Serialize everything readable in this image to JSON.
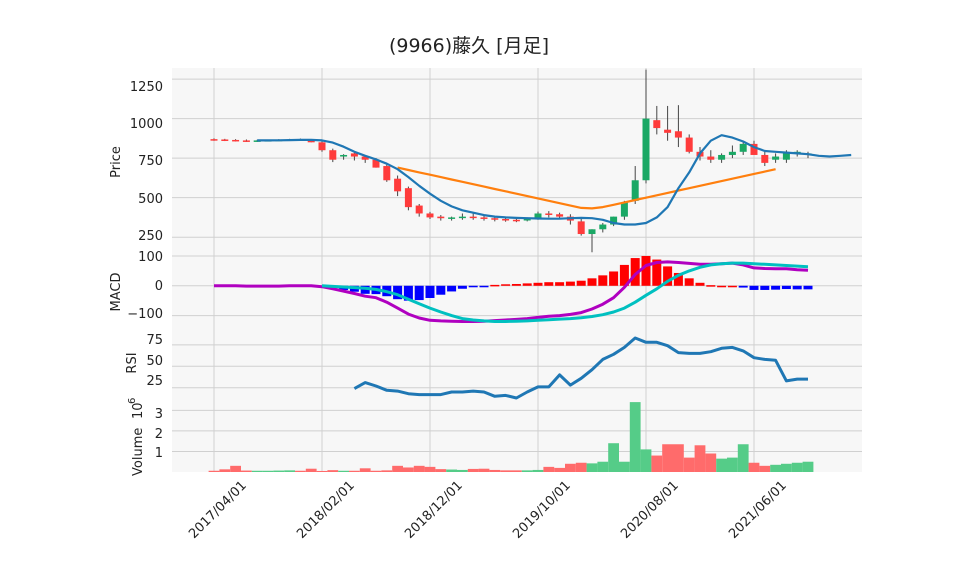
{
  "title": "(9966)藤久 [月足]",
  "colors": {
    "up": "#1aa865",
    "down": "#ff3b3b",
    "sma_short": "#1f77b4",
    "sma_long": "#ff7f0e",
    "macd_line": "#b000c0",
    "signal_line": "#00c0c0",
    "hist_pos": "#ff0000",
    "hist_neg": "#0000ff",
    "rsi": "#1f77b4",
    "vol_up": "#55cc88",
    "vol_down": "#ff6b6b",
    "grid": "#d0d0d0",
    "panel_bg": "#f7f7f7"
  },
  "chart_data": [
    {
      "type": "candlestick",
      "panel": "price",
      "ylabel": "Price",
      "ylim": [
        150,
        1320
      ],
      "yticks": [
        250,
        500,
        750,
        1000,
        1250
      ],
      "xlim": [
        "2017-04",
        "2021-11"
      ],
      "xticks": [
        "2017/04/01",
        "2018/02/01",
        "2018/12/01",
        "2019/10/01",
        "2020/08/01",
        "2021/06/01"
      ],
      "x": [
        "2017-04",
        "2017-05",
        "2017-06",
        "2017-07",
        "2017-08",
        "2017-09",
        "2017-10",
        "2017-11",
        "2017-12",
        "2018-01",
        "2018-02",
        "2018-03",
        "2018-04",
        "2018-05",
        "2018-06",
        "2018-07",
        "2018-08",
        "2018-09",
        "2018-10",
        "2018-11",
        "2018-12",
        "2019-01",
        "2019-02",
        "2019-03",
        "2019-04",
        "2019-05",
        "2019-06",
        "2019-07",
        "2019-08",
        "2019-09",
        "2019-10",
        "2019-11",
        "2019-12",
        "2020-01",
        "2020-02",
        "2020-03",
        "2020-04",
        "2020-05",
        "2020-06",
        "2020-07",
        "2020-08",
        "2020-09",
        "2020-10",
        "2020-11",
        "2020-12",
        "2021-01",
        "2021-02",
        "2021-03",
        "2021-04",
        "2021-05",
        "2021-06",
        "2021-07",
        "2021-08",
        "2021-09",
        "2021-10",
        "2021-11"
      ],
      "open": [
        870,
        868,
        865,
        862,
        860,
        862,
        864,
        866,
        868,
        866,
        850,
        800,
        760,
        780,
        760,
        740,
        700,
        620,
        560,
        450,
        400,
        380,
        370,
        375,
        380,
        375,
        370,
        365,
        360,
        360,
        370,
        400,
        395,
        380,
        350,
        270,
        300,
        330,
        380,
        480,
        610,
        990,
        930,
        920,
        880,
        790,
        760,
        740,
        770,
        790,
        840,
        770,
        740,
        740,
        780,
        775
      ],
      "high": [
        875,
        872,
        870,
        868,
        866,
        868,
        870,
        872,
        874,
        870,
        855,
        810,
        775,
        790,
        770,
        750,
        710,
        640,
        570,
        460,
        410,
        390,
        380,
        400,
        400,
        385,
        378,
        372,
        368,
        375,
        412,
        415,
        405,
        395,
        365,
        300,
        340,
        380,
        480,
        700,
        1310,
        1080,
        1080,
        1085,
        900,
        820,
        800,
        780,
        830,
        860,
        860,
        790,
        780,
        800,
        800,
        790
      ],
      "low": [
        860,
        858,
        855,
        852,
        852,
        855,
        858,
        860,
        860,
        850,
        790,
        725,
        740,
        735,
        720,
        690,
        600,
        510,
        420,
        380,
        365,
        355,
        355,
        360,
        360,
        355,
        350,
        348,
        345,
        350,
        360,
        375,
        365,
        330,
        260,
        155,
        280,
        320,
        360,
        460,
        590,
        900,
        860,
        820,
        780,
        735,
        720,
        720,
        750,
        770,
        780,
        700,
        720,
        720,
        760,
        750
      ],
      "close": [
        868,
        865,
        862,
        860,
        862,
        864,
        866,
        868,
        866,
        850,
        800,
        740,
        770,
        760,
        740,
        690,
        610,
        540,
        440,
        400,
        375,
        370,
        375,
        380,
        372,
        370,
        365,
        360,
        358,
        365,
        400,
        395,
        380,
        355,
        270,
        300,
        330,
        380,
        470,
        610,
        1000,
        940,
        910,
        880,
        790,
        760,
        740,
        770,
        790,
        840,
        770,
        720,
        760,
        780,
        790,
        780
      ]
    },
    {
      "type": "line",
      "panel": "price",
      "name": "sma_short",
      "x_start": "2017-08",
      "values": [
        862,
        862,
        863,
        864,
        865,
        865,
        862,
        848,
        822,
        790,
        765,
        742,
        715,
        680,
        630,
        575,
        525,
        480,
        445,
        420,
        405,
        390,
        380,
        375,
        372,
        370,
        368,
        367,
        367,
        370,
        372,
        370,
        360,
        340,
        330,
        330,
        340,
        375,
        440,
        560,
        660,
        780,
        860,
        895,
        880,
        855,
        820,
        795,
        790,
        785,
        780,
        775,
        765,
        760,
        765,
        770
      ]
    },
    {
      "type": "line",
      "panel": "price",
      "name": "sma_long",
      "x_start": "2018-09",
      "values": [
        690,
        675,
        660,
        645,
        630,
        615,
        600,
        585,
        570,
        555,
        540,
        525,
        510,
        495,
        480,
        465,
        450,
        435,
        432,
        440,
        455,
        470,
        485,
        500,
        515,
        530,
        545,
        560,
        575,
        590,
        605,
        620,
        635,
        650,
        665,
        680
      ]
    },
    {
      "type": "bar+line",
      "panel": "macd",
      "ylabel": "MACD",
      "ylim": [
        -135,
        110
      ],
      "yticks": [
        100,
        0,
        -100
      ],
      "x_start": "2017-04",
      "macd": [
        0,
        0,
        0,
        -1,
        -1,
        -1,
        -1,
        0,
        0,
        0,
        -3,
        -10,
        -18,
        -26,
        -35,
        -40,
        -55,
        -75,
        -95,
        -108,
        -116,
        -118,
        -119,
        -120,
        -120,
        -119,
        -117,
        -115,
        -113,
        -110,
        -106,
        -102,
        -100,
        -96,
        -90,
        -78,
        -62,
        -40,
        -5,
        38,
        68,
        78,
        80,
        78,
        75,
        72,
        72,
        74,
        76,
        70,
        60,
        58,
        57,
        57,
        54,
        52
      ],
      "signal": [
        null,
        null,
        null,
        null,
        null,
        null,
        null,
        null,
        null,
        null,
        0,
        -2,
        -4,
        -6,
        -8,
        -12,
        -20,
        -30,
        -45,
        -60,
        -75,
        -88,
        -100,
        -110,
        -115,
        -118,
        -120,
        -120,
        -119,
        -118,
        -116,
        -114,
        -112,
        -110,
        -107,
        -103,
        -97,
        -88,
        -75,
        -55,
        -32,
        -10,
        15,
        35,
        50,
        62,
        70,
        74,
        76,
        76,
        74,
        72,
        70,
        68,
        66,
        64
      ],
      "hist": [
        null,
        null,
        null,
        null,
        null,
        null,
        null,
        null,
        null,
        null,
        -3,
        -8,
        -14,
        -20,
        -27,
        -28,
        -35,
        -45,
        -50,
        -48,
        -41,
        -30,
        -19,
        -10,
        -5,
        -1,
        3,
        5,
        6,
        8,
        10,
        12,
        12,
        14,
        17,
        25,
        35,
        48,
        70,
        93,
        100,
        88,
        65,
        43,
        25,
        10,
        2,
        0,
        0,
        -6,
        -14,
        -14,
        -13,
        -11,
        -12,
        -12
      ]
    },
    {
      "type": "line",
      "panel": "rsi",
      "ylabel": "RSI",
      "ylim": [
        13,
        97
      ],
      "yticks": [
        25,
        50,
        75
      ],
      "x_start": "2018-05",
      "values": [
        24,
        31,
        27,
        22,
        21,
        18,
        17,
        17,
        17,
        20,
        20,
        21,
        20,
        15,
        16,
        13,
        20,
        26,
        26,
        40,
        28,
        36,
        46,
        58,
        64,
        72,
        83,
        78,
        78,
        74,
        66,
        65,
        65,
        67,
        71,
        72,
        68,
        60,
        58,
        57,
        33,
        35,
        35
      ]
    },
    {
      "type": "bar",
      "panel": "volume",
      "ylabel": "Volume  10^6",
      "ylim": [
        0,
        3.6
      ],
      "yticks": [
        1,
        2,
        3
      ],
      "x_start": "2017-04",
      "values": [
        0.06,
        0.13,
        0.3,
        0.07,
        0.06,
        0.06,
        0.07,
        0.08,
        0.06,
        0.16,
        0.05,
        0.09,
        0.06,
        0.06,
        0.18,
        0.06,
        0.08,
        0.3,
        0.22,
        0.3,
        0.25,
        0.14,
        0.12,
        0.1,
        0.15,
        0.16,
        0.1,
        0.08,
        0.08,
        0.08,
        0.1,
        0.25,
        0.2,
        0.4,
        0.45,
        0.42,
        0.5,
        1.4,
        0.5,
        3.4,
        1.1,
        0.8,
        1.35,
        1.35,
        0.7,
        1.3,
        0.9,
        0.65,
        0.7,
        1.35,
        0.45,
        0.3,
        0.35,
        0.4,
        0.45,
        0.5
      ],
      "up": [
        false,
        false,
        false,
        false,
        true,
        true,
        true,
        true,
        false,
        false,
        false,
        false,
        true,
        false,
        false,
        false,
        false,
        false,
        false,
        false,
        false,
        false,
        true,
        true,
        false,
        false,
        false,
        false,
        false,
        true,
        true,
        false,
        false,
        false,
        false,
        true,
        true,
        true,
        true,
        true,
        true,
        false,
        false,
        false,
        false,
        false,
        false,
        true,
        true,
        true,
        false,
        false,
        true,
        true,
        true,
        true
      ]
    }
  ],
  "labels": {
    "price_ticks": [
      "1250",
      "1000",
      "750",
      "500",
      "250"
    ],
    "macd_ticks": [
      "100",
      "0",
      "−100"
    ],
    "rsi_ticks": [
      "75",
      "50",
      "25"
    ],
    "vol_ticks": [
      "3",
      "2",
      "1"
    ],
    "x_ticks": [
      "2017/04/01",
      "2018/02/01",
      "2018/12/01",
      "2019/10/01",
      "2020/08/01",
      "2021/06/01"
    ],
    "price_label": "Price",
    "macd_label": "MACD",
    "rsi_label": "RSI",
    "vol_label": "Volume",
    "vol_exp": "10",
    "vol_exp_sup": "6"
  }
}
